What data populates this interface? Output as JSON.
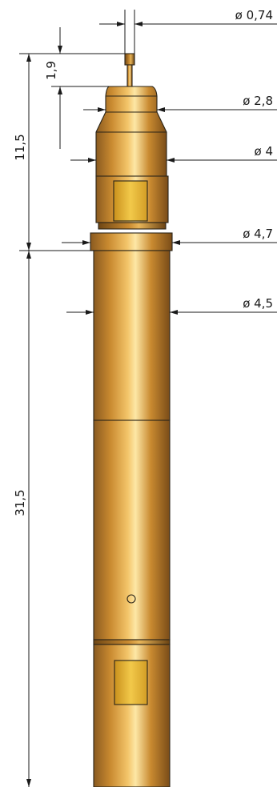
{
  "dimensions": {
    "d_tip": "ø 0,74",
    "d_neck": "ø 2,8",
    "d_head": "ø 4",
    "d_collar": "ø 4,7",
    "d_body": "ø 4,5",
    "len_tip": "1,9",
    "len_head": "11,5",
    "len_body": "31,5"
  },
  "colors": {
    "metal_dark": "#8a5a20",
    "metal_mid": "#c98a30",
    "metal_light": "#f3c56a",
    "metal_highlight": "#fde7a6",
    "window": "#e4b233",
    "line": "#1a1a1a"
  }
}
